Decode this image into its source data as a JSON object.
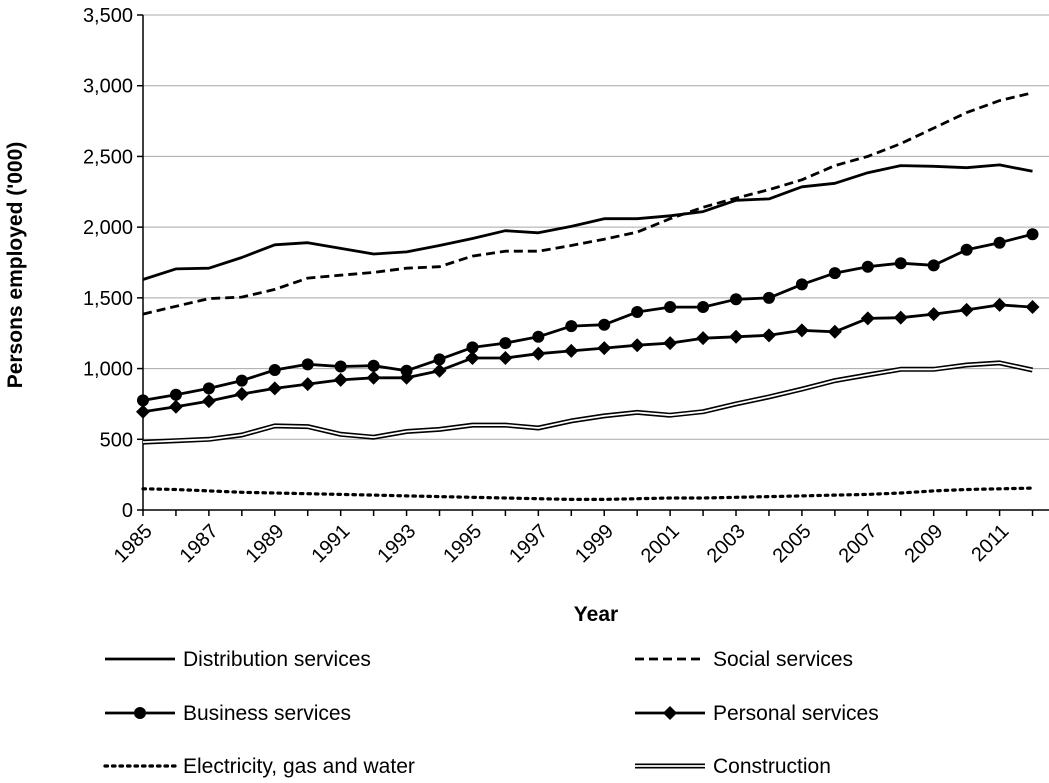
{
  "chart_data": {
    "type": "line",
    "xlabel": "Year",
    "ylabel": "Persons employed ('000)",
    "ylim": [
      0,
      3500
    ],
    "yticks": [
      "0",
      "500",
      "1,000",
      "1,500",
      "2,000",
      "2,500",
      "3,000",
      "3,500"
    ],
    "ytick_values": [
      0,
      500,
      1000,
      1500,
      2000,
      2500,
      3000,
      3500
    ],
    "x": [
      1985,
      1986,
      1987,
      1988,
      1989,
      1990,
      1991,
      1992,
      1993,
      1994,
      1995,
      1996,
      1997,
      1998,
      1999,
      2000,
      2001,
      2002,
      2003,
      2004,
      2005,
      2006,
      2007,
      2008,
      2009,
      2010,
      2011,
      2012
    ],
    "xticks": [
      "1985",
      "1987",
      "1989",
      "1991",
      "1993",
      "1995",
      "1997",
      "1999",
      "2001",
      "2003",
      "2005",
      "2007",
      "2009",
      "2011"
    ],
    "grid": "horizontal",
    "legend_position": "bottom",
    "series": [
      {
        "name": "Distribution services",
        "style": "solid",
        "color": "#000000",
        "values": [
          1630,
          1705,
          1710,
          1785,
          1875,
          1890,
          1850,
          1810,
          1825,
          1870,
          1920,
          1975,
          1960,
          2005,
          2060,
          2060,
          2080,
          2110,
          2190,
          2200,
          2285,
          2310,
          2385,
          2435,
          2430,
          2420,
          2440,
          2395
        ]
      },
      {
        "name": "Social services",
        "style": "dashed",
        "color": "#000000",
        "values": [
          1385,
          1440,
          1495,
          1505,
          1560,
          1640,
          1660,
          1680,
          1710,
          1720,
          1795,
          1830,
          1830,
          1870,
          1915,
          1965,
          2060,
          2140,
          2205,
          2265,
          2335,
          2435,
          2500,
          2590,
          2700,
          2810,
          2895,
          2950
        ]
      },
      {
        "name": "Business services",
        "style": "circle",
        "color": "#000000",
        "values": [
          775,
          815,
          860,
          915,
          990,
          1030,
          1015,
          1020,
          985,
          1065,
          1150,
          1180,
          1225,
          1300,
          1310,
          1400,
          1435,
          1435,
          1490,
          1500,
          1595,
          1675,
          1720,
          1745,
          1730,
          1840,
          1890,
          1950
        ]
      },
      {
        "name": "Personal services",
        "style": "diamond",
        "color": "#000000",
        "values": [
          695,
          730,
          770,
          820,
          860,
          890,
          920,
          935,
          935,
          985,
          1075,
          1075,
          1105,
          1125,
          1145,
          1165,
          1180,
          1215,
          1225,
          1235,
          1270,
          1260,
          1355,
          1360,
          1385,
          1415,
          1450,
          1435
        ]
      },
      {
        "name": "Electricity, gas and water",
        "style": "dotted",
        "color": "#000000",
        "values": [
          150,
          145,
          135,
          125,
          120,
          115,
          110,
          105,
          100,
          95,
          90,
          85,
          80,
          75,
          75,
          80,
          85,
          85,
          90,
          95,
          100,
          105,
          110,
          120,
          135,
          145,
          150,
          155
        ]
      },
      {
        "name": "Construction",
        "style": "double",
        "color": "#000000",
        "values": [
          480,
          490,
          500,
          530,
          595,
          590,
          535,
          515,
          555,
          570,
          600,
          600,
          580,
          630,
          665,
          690,
          670,
          695,
          750,
          800,
          855,
          915,
          955,
          995,
          995,
          1025,
          1040,
          990
        ]
      }
    ]
  }
}
